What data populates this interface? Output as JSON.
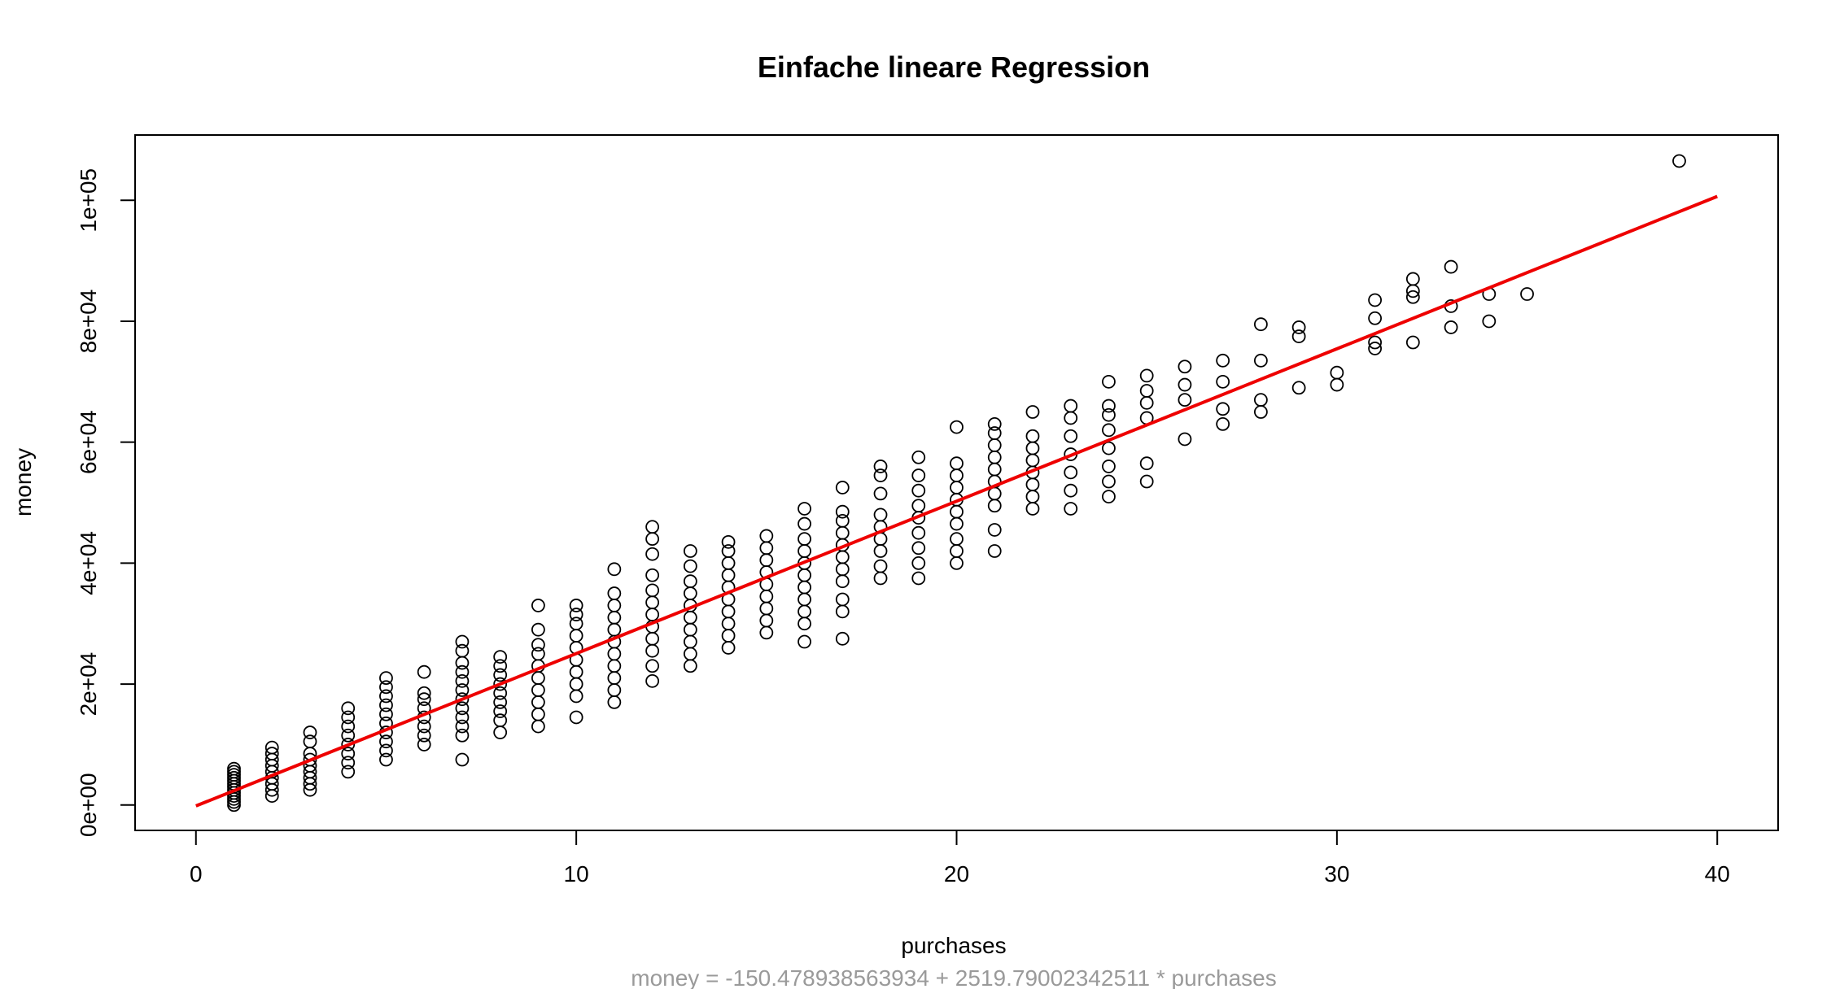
{
  "chart_data": {
    "type": "scatter",
    "title": "Einfache lineare Regression",
    "xlabel": "purchases",
    "ylabel": "money",
    "subtitle": "money =  -150.478938563934 + 2519.79002342511 * purchases",
    "xlim": [
      -1.6,
      41.6
    ],
    "ylim": [
      -4200,
      110800
    ],
    "x_ticks": [
      0,
      10,
      20,
      30,
      40
    ],
    "x_tick_labels": [
      "0",
      "10",
      "20",
      "30",
      "40"
    ],
    "y_ticks": [
      0,
      20000,
      40000,
      60000,
      80000,
      100000
    ],
    "y_tick_labels": [
      "0e+00",
      "2e+04",
      "4e+04",
      "6e+04",
      "8e+04",
      "1e+05"
    ],
    "grid": false,
    "point_style": "open circle",
    "points": [
      [
        1,
        0
      ],
      [
        1,
        500
      ],
      [
        1,
        1000
      ],
      [
        1,
        1500
      ],
      [
        1,
        2000
      ],
      [
        1,
        2500
      ],
      [
        1,
        3000
      ],
      [
        1,
        3500
      ],
      [
        1,
        4000
      ],
      [
        1,
        4500
      ],
      [
        1,
        5000
      ],
      [
        1,
        5500
      ],
      [
        1,
        6000
      ],
      [
        2,
        1500
      ],
      [
        2,
        2500
      ],
      [
        2,
        3500
      ],
      [
        2,
        4500
      ],
      [
        2,
        5500
      ],
      [
        2,
        6500
      ],
      [
        2,
        7500
      ],
      [
        2,
        8500
      ],
      [
        2,
        9500
      ],
      [
        3,
        2500
      ],
      [
        3,
        3500
      ],
      [
        3,
        4500
      ],
      [
        3,
        5500
      ],
      [
        3,
        6500
      ],
      [
        3,
        7500
      ],
      [
        3,
        8500
      ],
      [
        3,
        10500
      ],
      [
        3,
        12000
      ],
      [
        4,
        5500
      ],
      [
        4,
        7000
      ],
      [
        4,
        8500
      ],
      [
        4,
        10000
      ],
      [
        4,
        11500
      ],
      [
        4,
        13000
      ],
      [
        4,
        14500
      ],
      [
        4,
        16000
      ],
      [
        5,
        7500
      ],
      [
        5,
        9000
      ],
      [
        5,
        10500
      ],
      [
        5,
        12000
      ],
      [
        5,
        13500
      ],
      [
        5,
        15000
      ],
      [
        5,
        16500
      ],
      [
        5,
        18000
      ],
      [
        5,
        19500
      ],
      [
        5,
        21000
      ],
      [
        6,
        10000
      ],
      [
        6,
        11500
      ],
      [
        6,
        13000
      ],
      [
        6,
        14500
      ],
      [
        6,
        16000
      ],
      [
        6,
        17500
      ],
      [
        6,
        18500
      ],
      [
        6,
        22000
      ],
      [
        7,
        7500
      ],
      [
        7,
        11500
      ],
      [
        7,
        13000
      ],
      [
        7,
        14500
      ],
      [
        7,
        16000
      ],
      [
        7,
        17500
      ],
      [
        7,
        19000
      ],
      [
        7,
        20500
      ],
      [
        7,
        22000
      ],
      [
        7,
        23500
      ],
      [
        7,
        25500
      ],
      [
        7,
        27000
      ],
      [
        8,
        12000
      ],
      [
        8,
        14000
      ],
      [
        8,
        15500
      ],
      [
        8,
        17000
      ],
      [
        8,
        18500
      ],
      [
        8,
        20000
      ],
      [
        8,
        21500
      ],
      [
        8,
        23000
      ],
      [
        8,
        24500
      ],
      [
        9,
        13000
      ],
      [
        9,
        15000
      ],
      [
        9,
        17000
      ],
      [
        9,
        19000
      ],
      [
        9,
        21000
      ],
      [
        9,
        23000
      ],
      [
        9,
        25000
      ],
      [
        9,
        26500
      ],
      [
        9,
        29000
      ],
      [
        9,
        33000
      ],
      [
        10,
        14500
      ],
      [
        10,
        18000
      ],
      [
        10,
        20000
      ],
      [
        10,
        22000
      ],
      [
        10,
        24000
      ],
      [
        10,
        26000
      ],
      [
        10,
        28000
      ],
      [
        10,
        30000
      ],
      [
        10,
        31500
      ],
      [
        10,
        33000
      ],
      [
        11,
        17000
      ],
      [
        11,
        19000
      ],
      [
        11,
        21000
      ],
      [
        11,
        23000
      ],
      [
        11,
        25000
      ],
      [
        11,
        27000
      ],
      [
        11,
        29000
      ],
      [
        11,
        31000
      ],
      [
        11,
        33000
      ],
      [
        11,
        35000
      ],
      [
        11,
        39000
      ],
      [
        12,
        20500
      ],
      [
        12,
        23000
      ],
      [
        12,
        25500
      ],
      [
        12,
        27500
      ],
      [
        12,
        29500
      ],
      [
        12,
        31500
      ],
      [
        12,
        33500
      ],
      [
        12,
        35500
      ],
      [
        12,
        38000
      ],
      [
        12,
        41500
      ],
      [
        12,
        44000
      ],
      [
        12,
        46000
      ],
      [
        13,
        23000
      ],
      [
        13,
        25000
      ],
      [
        13,
        27000
      ],
      [
        13,
        29000
      ],
      [
        13,
        31000
      ],
      [
        13,
        33000
      ],
      [
        13,
        35000
      ],
      [
        13,
        37000
      ],
      [
        13,
        39500
      ],
      [
        13,
        42000
      ],
      [
        14,
        26000
      ],
      [
        14,
        28000
      ],
      [
        14,
        30000
      ],
      [
        14,
        32000
      ],
      [
        14,
        34000
      ],
      [
        14,
        36000
      ],
      [
        14,
        38000
      ],
      [
        14,
        40000
      ],
      [
        14,
        42000
      ],
      [
        14,
        43500
      ],
      [
        15,
        28500
      ],
      [
        15,
        30500
      ],
      [
        15,
        32500
      ],
      [
        15,
        34500
      ],
      [
        15,
        36500
      ],
      [
        15,
        38500
      ],
      [
        15,
        40500
      ],
      [
        15,
        42500
      ],
      [
        15,
        44500
      ],
      [
        16,
        27000
      ],
      [
        16,
        30000
      ],
      [
        16,
        32000
      ],
      [
        16,
        34000
      ],
      [
        16,
        36000
      ],
      [
        16,
        38000
      ],
      [
        16,
        40000
      ],
      [
        16,
        42000
      ],
      [
        16,
        44000
      ],
      [
        16,
        46500
      ],
      [
        16,
        49000
      ],
      [
        17,
        27500
      ],
      [
        17,
        32000
      ],
      [
        17,
        34000
      ],
      [
        17,
        37000
      ],
      [
        17,
        39000
      ],
      [
        17,
        41000
      ],
      [
        17,
        43000
      ],
      [
        17,
        45000
      ],
      [
        17,
        47000
      ],
      [
        17,
        48500
      ],
      [
        17,
        52500
      ],
      [
        18,
        37500
      ],
      [
        18,
        39500
      ],
      [
        18,
        42000
      ],
      [
        18,
        44000
      ],
      [
        18,
        46000
      ],
      [
        18,
        48000
      ],
      [
        18,
        51500
      ],
      [
        18,
        54500
      ],
      [
        18,
        56000
      ],
      [
        19,
        37500
      ],
      [
        19,
        40000
      ],
      [
        19,
        42500
      ],
      [
        19,
        45000
      ],
      [
        19,
        47500
      ],
      [
        19,
        49500
      ],
      [
        19,
        52000
      ],
      [
        19,
        54500
      ],
      [
        19,
        57500
      ],
      [
        20,
        40000
      ],
      [
        20,
        42000
      ],
      [
        20,
        44000
      ],
      [
        20,
        46500
      ],
      [
        20,
        48500
      ],
      [
        20,
        50500
      ],
      [
        20,
        52500
      ],
      [
        20,
        54500
      ],
      [
        20,
        56500
      ],
      [
        20,
        62500
      ],
      [
        21,
        42000
      ],
      [
        21,
        45500
      ],
      [
        21,
        49500
      ],
      [
        21,
        51500
      ],
      [
        21,
        53500
      ],
      [
        21,
        55500
      ],
      [
        21,
        57500
      ],
      [
        21,
        59500
      ],
      [
        21,
        61500
      ],
      [
        21,
        63000
      ],
      [
        22,
        49000
      ],
      [
        22,
        51000
      ],
      [
        22,
        53000
      ],
      [
        22,
        55000
      ],
      [
        22,
        57000
      ],
      [
        22,
        59000
      ],
      [
        22,
        61000
      ],
      [
        22,
        65000
      ],
      [
        23,
        49000
      ],
      [
        23,
        52000
      ],
      [
        23,
        55000
      ],
      [
        23,
        58000
      ],
      [
        23,
        61000
      ],
      [
        23,
        64000
      ],
      [
        23,
        66000
      ],
      [
        24,
        51000
      ],
      [
        24,
        53500
      ],
      [
        24,
        56000
      ],
      [
        24,
        59000
      ],
      [
        24,
        62000
      ],
      [
        24,
        64500
      ],
      [
        24,
        66000
      ],
      [
        24,
        70000
      ],
      [
        25,
        53500
      ],
      [
        25,
        56500
      ],
      [
        25,
        64000
      ],
      [
        25,
        66500
      ],
      [
        25,
        68500
      ],
      [
        25,
        71000
      ],
      [
        26,
        60500
      ],
      [
        26,
        67000
      ],
      [
        26,
        69500
      ],
      [
        26,
        72500
      ],
      [
        27,
        63000
      ],
      [
        27,
        65500
      ],
      [
        27,
        70000
      ],
      [
        27,
        73500
      ],
      [
        28,
        65000
      ],
      [
        28,
        67000
      ],
      [
        28,
        73500
      ],
      [
        28,
        79500
      ],
      [
        29,
        69000
      ],
      [
        29,
        77500
      ],
      [
        29,
        79000
      ],
      [
        30,
        69500
      ],
      [
        30,
        71500
      ],
      [
        31,
        75500
      ],
      [
        31,
        76500
      ],
      [
        31,
        80500
      ],
      [
        31,
        83500
      ],
      [
        32,
        76500
      ],
      [
        32,
        84000
      ],
      [
        32,
        85000
      ],
      [
        32,
        87000
      ],
      [
        33,
        79000
      ],
      [
        33,
        82500
      ],
      [
        33,
        89000
      ],
      [
        34,
        80000
      ],
      [
        34,
        84500
      ],
      [
        35,
        84500
      ],
      [
        39,
        106500
      ]
    ],
    "regression_line": {
      "intercept": -150.478938563934,
      "slope": 2519.79002342511,
      "x_range": [
        0,
        40
      ],
      "color": "#ee0000"
    },
    "point_color": "#000000"
  }
}
